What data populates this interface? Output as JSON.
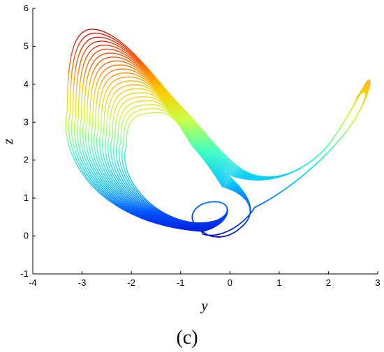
{
  "panel_label": "(c)",
  "chart_data": {
    "type": "line",
    "title": "",
    "xlabel": "y",
    "ylabel": "z",
    "xlim": [
      -4,
      3
    ],
    "ylim": [
      -1,
      6
    ],
    "xticks": [
      "-4",
      "-3",
      "-2",
      "-1",
      "0",
      "1",
      "2",
      "3"
    ],
    "yticks": [
      "-1",
      "0",
      "1",
      "2",
      "3",
      "4",
      "5",
      "6"
    ],
    "grid": false,
    "legend": "none",
    "colormap": "jet (color by z)",
    "colormap_stops": [
      "#0000c8",
      "#0050ff",
      "#00c8ff",
      "#40ffc0",
      "#c8ff40",
      "#ffc800",
      "#ff5000",
      "#c80000"
    ],
    "colormap_range": [
      -0.2,
      5.5
    ],
    "attractor_params": {
      "outer_left_lobe": {
        "center": [
          -1.2,
          2.7
        ],
        "radius_y": 2.1,
        "radius_z": 2.8
      },
      "inner_left_lobe": {
        "center": [
          -0.6,
          1.8
        ],
        "radius_y": 1.2,
        "radius_z": 1.8
      },
      "core_loop": {
        "center": [
          -0.4,
          0.6
        ],
        "radius_y": 0.7,
        "radius_z": 0.55
      },
      "right_wing_peak": [
        2.8,
        4.1
      ],
      "right_wing_base": [
        0.7,
        1.3
      ],
      "z_min": -0.15,
      "z_max": 5.5
    }
  }
}
